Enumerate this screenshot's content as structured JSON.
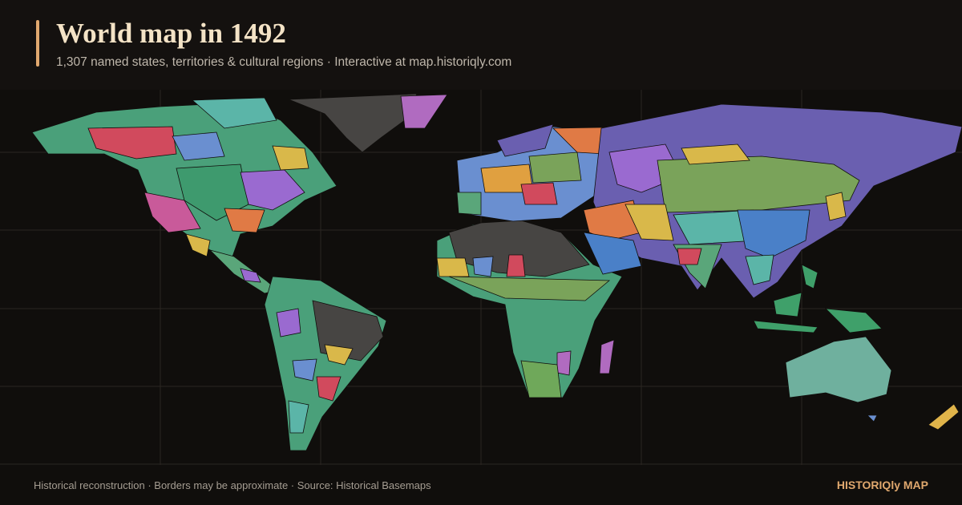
{
  "header": {
    "title": "World map in 1492",
    "subtitle": "1,307 named states, territories & cultural regions · Interactive at map.historiqly.com"
  },
  "footer": {
    "note": "Historical reconstruction · Borders may be approximate · Source: Historical Basemaps",
    "brand": "HISTORIQly MAP"
  }
}
